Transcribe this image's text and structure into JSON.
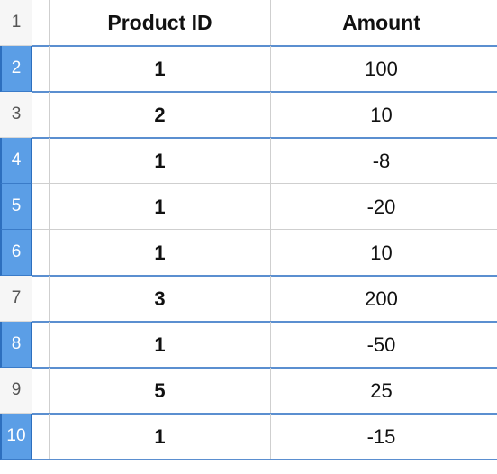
{
  "header": {
    "row_number": "1",
    "col_product_id": "Product ID",
    "col_amount": "Amount"
  },
  "rows": [
    {
      "num": "2",
      "product_id": "1",
      "amount": "100",
      "selected": true
    },
    {
      "num": "3",
      "product_id": "2",
      "amount": "10",
      "selected": false
    },
    {
      "num": "4",
      "product_id": "1",
      "amount": "-8",
      "selected": true
    },
    {
      "num": "5",
      "product_id": "1",
      "amount": "-20",
      "selected": true
    },
    {
      "num": "6",
      "product_id": "1",
      "amount": "10",
      "selected": true
    },
    {
      "num": "7",
      "product_id": "3",
      "amount": "200",
      "selected": false
    },
    {
      "num": "8",
      "product_id": "1",
      "amount": "-50",
      "selected": true
    },
    {
      "num": "9",
      "product_id": "5",
      "amount": "25",
      "selected": false
    },
    {
      "num": "10",
      "product_id": "1",
      "amount": "-15",
      "selected": true
    }
  ],
  "colors": {
    "selection": "#5b9ee6",
    "selection_border": "#2d6fbe",
    "grid": "#cfcfcf"
  }
}
